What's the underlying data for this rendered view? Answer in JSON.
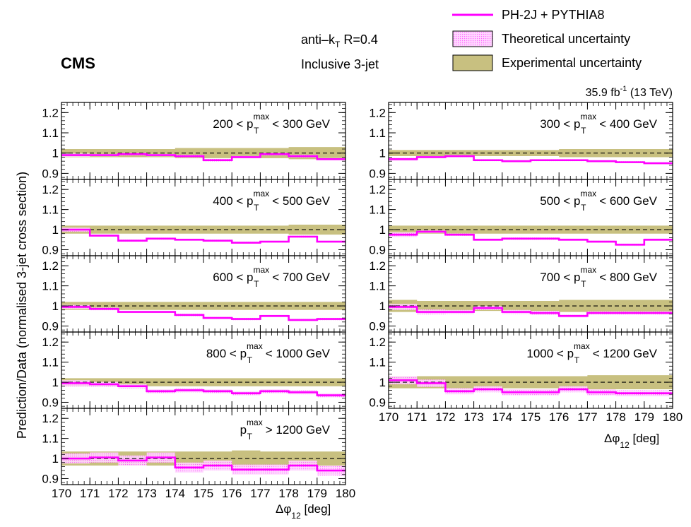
{
  "header": {
    "experiment": "CMS",
    "algorithm": "anti–k",
    "algorithm_sub": "T",
    "algorithm_radius": " R=0.4",
    "selection": "Inclusive 3-jet",
    "luminosity": "35.9 fb",
    "luminosity_sup": "-1",
    "energy": " (13 TeV)"
  },
  "legend": {
    "prediction": "PH-2J + PYTHIA8",
    "theory": "Theoretical uncertainty",
    "experiment": "Experimental uncertainty"
  },
  "axes": {
    "ylabel": "Prediction/Data (normalised 3-jet cross section)",
    "xlabel_main": "Δφ",
    "xlabel_sub": "12",
    "xlabel_unit": " [deg]"
  },
  "colors": {
    "prediction": "#ff00ff",
    "theory": "#ffb3ff",
    "experiment": "#c8c080",
    "experiment_edge": "#8a8550"
  },
  "chart_data": {
    "type": "line",
    "x_edges": [
      170,
      171,
      172,
      173,
      174,
      175,
      176,
      177,
      178,
      179,
      180
    ],
    "xlim": [
      170,
      180
    ],
    "ylim": [
      0.87,
      1.25
    ],
    "yticks": [
      0.9,
      1,
      1.1,
      1.2
    ],
    "ytick_labels": [
      "0.9",
      "1",
      "1.1",
      "1.2"
    ],
    "xticks": [
      170,
      171,
      172,
      173,
      174,
      175,
      176,
      177,
      178,
      179,
      180
    ],
    "xtick_labels": [
      "170",
      "171",
      "172",
      "173",
      "174",
      "175",
      "176",
      "177",
      "178",
      "179",
      "180"
    ],
    "panels": [
      {
        "label": "200 < p",
        "label_sup": "max",
        "label_sub": "T",
        "label_rest": " < 300 GeV",
        "prediction": [
          0.99,
          0.99,
          0.995,
          0.99,
          0.985,
          0.965,
          0.98,
          0.995,
          0.985,
          0.97
        ],
        "theory_unc": [
          0.008,
          0.006,
          0.006,
          0.006,
          0.006,
          0.006,
          0.006,
          0.006,
          0.006,
          0.006
        ],
        "exp_unc": [
          0.02,
          0.02,
          0.02,
          0.02,
          0.025,
          0.025,
          0.025,
          0.025,
          0.03,
          0.03
        ]
      },
      {
        "label": "300 < p",
        "label_sup": "max",
        "label_sub": "T",
        "label_rest": " < 400 GeV",
        "prediction": [
          0.97,
          0.98,
          0.985,
          0.965,
          0.96,
          0.965,
          0.965,
          0.96,
          0.955,
          0.95
        ],
        "theory_unc": [
          0.008,
          0.005,
          0.005,
          0.005,
          0.005,
          0.005,
          0.005,
          0.005,
          0.005,
          0.005
        ],
        "exp_unc": [
          0.015,
          0.015,
          0.015,
          0.015,
          0.015,
          0.015,
          0.02,
          0.02,
          0.02,
          0.02
        ]
      },
      {
        "label": "400 < p",
        "label_sup": "max",
        "label_sub": "T",
        "label_rest": " < 500 GeV",
        "prediction": [
          1.0,
          0.97,
          0.945,
          0.955,
          0.95,
          0.945,
          0.935,
          0.94,
          0.965,
          0.94
        ],
        "theory_unc": [
          0.01,
          0.005,
          0.005,
          0.005,
          0.005,
          0.005,
          0.005,
          0.005,
          0.005,
          0.005
        ],
        "exp_unc": [
          0.02,
          0.02,
          0.02,
          0.02,
          0.02,
          0.02,
          0.02,
          0.02,
          0.025,
          0.025
        ]
      },
      {
        "label": "500 < p",
        "label_sup": "max",
        "label_sub": "T",
        "label_rest": " < 600 GeV",
        "prediction": [
          0.975,
          0.99,
          0.975,
          0.95,
          0.955,
          0.955,
          0.95,
          0.94,
          0.925,
          0.95
        ],
        "theory_unc": [
          0.012,
          0.006,
          0.006,
          0.006,
          0.006,
          0.006,
          0.006,
          0.006,
          0.006,
          0.006
        ],
        "exp_unc": [
          0.02,
          0.02,
          0.02,
          0.02,
          0.02,
          0.02,
          0.02,
          0.02,
          0.02,
          0.02
        ]
      },
      {
        "label": "600 < p",
        "label_sup": "max",
        "label_sub": "T",
        "label_rest": " < 700 GeV",
        "prediction": [
          0.995,
          0.985,
          0.97,
          0.97,
          0.955,
          0.94,
          0.935,
          0.95,
          0.93,
          0.935
        ],
        "theory_unc": [
          0.01,
          0.007,
          0.006,
          0.006,
          0.006,
          0.006,
          0.006,
          0.006,
          0.006,
          0.006
        ],
        "exp_unc": [
          0.02,
          0.02,
          0.02,
          0.02,
          0.02,
          0.02,
          0.02,
          0.02,
          0.02,
          0.02
        ]
      },
      {
        "label": "700 < p",
        "label_sup": "max",
        "label_sub": "T",
        "label_rest": " < 800 GeV",
        "prediction": [
          0.995,
          0.97,
          0.97,
          0.99,
          0.97,
          0.965,
          0.95,
          0.965,
          0.965,
          0.965
        ],
        "theory_unc": [
          0.015,
          0.012,
          0.01,
          0.01,
          0.01,
          0.01,
          0.008,
          0.008,
          0.008,
          0.008
        ],
        "exp_unc": [
          0.03,
          0.025,
          0.025,
          0.025,
          0.025,
          0.025,
          0.03,
          0.03,
          0.03,
          0.03
        ]
      },
      {
        "label": "800 < p",
        "label_sup": "max",
        "label_sub": "T",
        "label_rest": " < 1000 GeV",
        "prediction": [
          0.995,
          0.99,
          0.98,
          0.955,
          0.96,
          0.955,
          0.945,
          0.955,
          0.95,
          0.935
        ],
        "theory_unc": [
          0.015,
          0.012,
          0.01,
          0.01,
          0.01,
          0.01,
          0.01,
          0.01,
          0.01,
          0.01
        ],
        "exp_unc": [
          0.02,
          0.02,
          0.02,
          0.02,
          0.02,
          0.02,
          0.02,
          0.02,
          0.02,
          0.02
        ]
      },
      {
        "label": "1000 < p",
        "label_sup": "max",
        "label_sub": "T",
        "label_rest": " < 1200 GeV",
        "prediction": [
          1.01,
          0.995,
          0.955,
          0.965,
          0.95,
          0.95,
          0.965,
          0.95,
          0.945,
          0.945
        ],
        "theory_unc": [
          0.02,
          0.018,
          0.015,
          0.015,
          0.015,
          0.015,
          0.015,
          0.015,
          0.015,
          0.015
        ],
        "exp_unc": [
          0.03,
          0.03,
          0.03,
          0.03,
          0.03,
          0.03,
          0.03,
          0.035,
          0.035,
          0.035
        ]
      },
      {
        "label": "p",
        "label_sup": "max",
        "label_sub": "T",
        "label_rest": " > 1200 GeV",
        "prediction": [
          1.0,
          1.005,
          0.99,
          1.005,
          0.955,
          0.965,
          0.945,
          0.945,
          0.965,
          0.94
        ],
        "theory_unc": [
          0.025,
          0.025,
          0.025,
          0.025,
          0.025,
          0.025,
          0.025,
          0.025,
          0.025,
          0.025
        ],
        "exp_unc": [
          0.035,
          0.035,
          0.035,
          0.035,
          0.035,
          0.035,
          0.04,
          0.035,
          0.035,
          0.035
        ]
      }
    ]
  }
}
